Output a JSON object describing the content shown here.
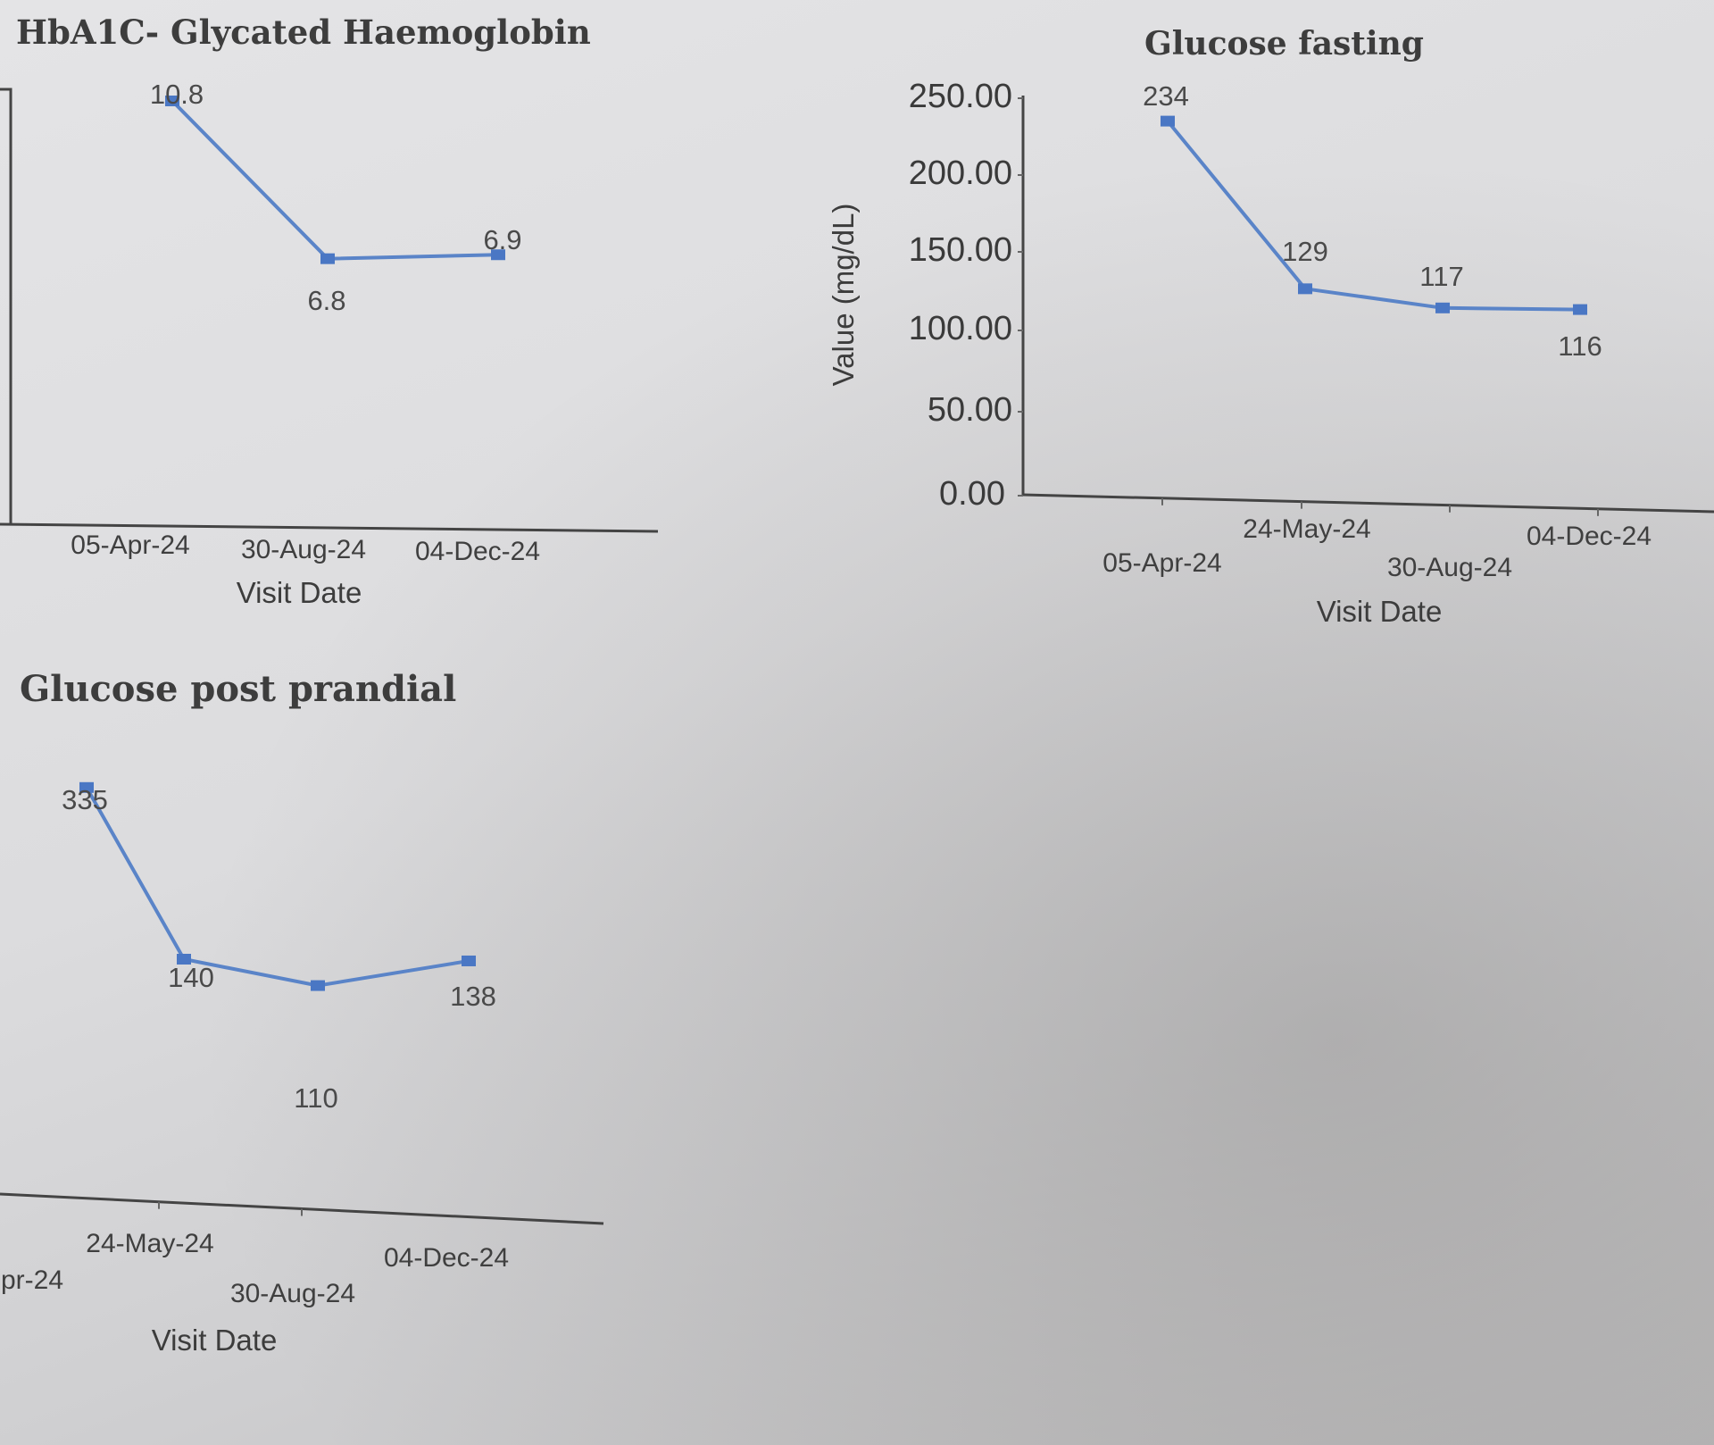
{
  "chart_data": [
    {
      "id": "hba1c",
      "type": "line",
      "title": "HbA1C- Glycated Haemoglobin",
      "xlabel": "Visit Date",
      "ylabel": "",
      "categories": [
        "05-Apr-24",
        "30-Aug-24",
        "04-Dec-24"
      ],
      "series": [
        {
          "name": "HbA1C",
          "values": [
            10.8,
            6.8,
            6.9
          ],
          "labels": [
            "10.8",
            "6.8",
            "6.9"
          ]
        }
      ],
      "ylim": [
        0,
        12
      ],
      "y_ticks": [],
      "grid": false,
      "color": "#5a84c8"
    },
    {
      "id": "glucose-fasting",
      "type": "line",
      "title": "Glucose fasting",
      "xlabel": "Visit Date",
      "ylabel": "Value (mg/dL)",
      "categories": [
        "05-Apr-24",
        "24-May-24",
        "30-Aug-24",
        "04-Dec-24"
      ],
      "series": [
        {
          "name": "Glucose fasting",
          "values": [
            234,
            129,
            117,
            116
          ],
          "labels": [
            "234",
            "129",
            "117",
            "116"
          ]
        }
      ],
      "ylim": [
        0,
        250
      ],
      "y_ticks": [
        "250.00",
        "200.00",
        "150.00",
        "100.00",
        "50.00",
        "0.00"
      ],
      "grid": false,
      "color": "#5a84c8"
    },
    {
      "id": "glucose-pp",
      "type": "line",
      "title": "Glucose post prandial",
      "xlabel": "Visit Date",
      "ylabel": "",
      "categories": [
        "pr-24",
        "24-May-24",
        "30-Aug-24",
        "04-Dec-24"
      ],
      "series": [
        {
          "name": "Glucose post prandial",
          "values": [
            335,
            140,
            110,
            138
          ],
          "labels": [
            "335",
            "140",
            "110",
            "138"
          ]
        }
      ],
      "ylim": [
        0,
        350
      ],
      "y_ticks": [],
      "grid": false,
      "color": "#5a84c8"
    }
  ]
}
